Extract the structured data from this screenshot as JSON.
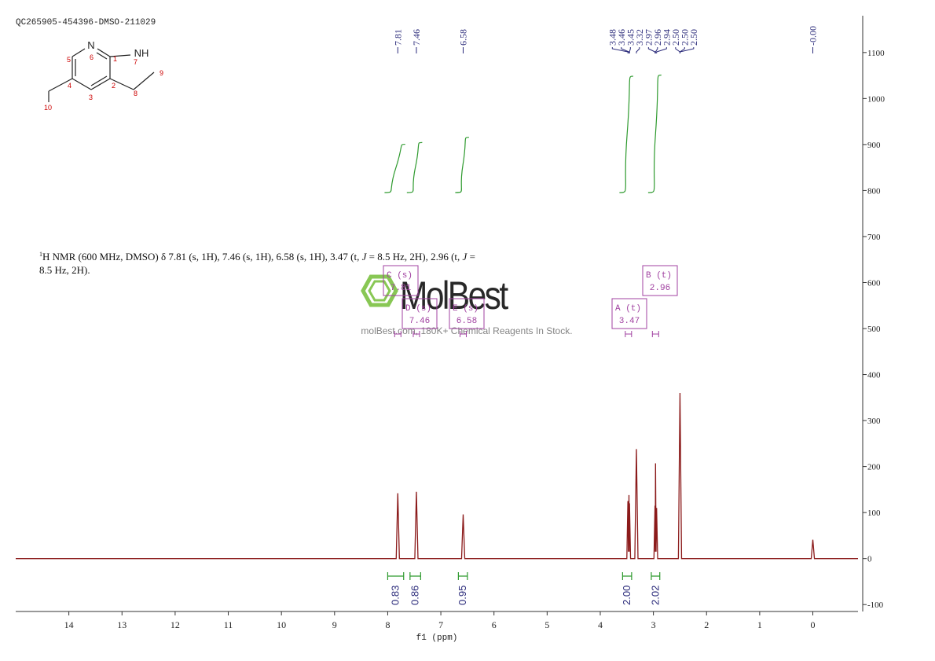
{
  "sample_id": "QC265905-454396-DMSO-211029",
  "structure": {
    "labels": [
      "N",
      "NH",
      "1",
      "2",
      "3",
      "4",
      "5",
      "6",
      "7",
      "8",
      "9",
      "10"
    ]
  },
  "description": [
    "1",
    "H NMR (600 MHz, DMSO) δ 7.81 (s, 1H), 7.46 (s, 1H), 6.58 (s, 1H), 3.47 (t, ",
    "J",
    " = 8.5 Hz, 2H), 2.96 (t, ",
    "J",
    " = 8.5 Hz, 2H)."
  ],
  "watermark": {
    "brand": "MolBest",
    "tagline": "molBest.com, 180K+ Chemical Reagents In Stock."
  },
  "chart_data": {
    "type": "line",
    "xlabel": "f1 (ppm)",
    "x": [
      15,
      7.84,
      7.81,
      7.78,
      7.49,
      7.46,
      7.43,
      6.61,
      6.58,
      6.55,
      3.5,
      3.48,
      3.47,
      3.46,
      3.455,
      3.45,
      3.43,
      3.35,
      3.32,
      3.29,
      2.99,
      2.97,
      2.965,
      2.96,
      2.95,
      2.94,
      2.92,
      2.53,
      2.5,
      2.47,
      0.03,
      0,
      -0.03,
      -0.85
    ],
    "values": [
      0,
      0,
      142,
      0,
      0,
      145,
      0,
      0,
      96,
      0,
      0,
      125,
      15,
      138,
      15,
      120,
      0,
      0,
      238,
      0,
      0,
      115,
      15,
      207,
      15,
      110,
      0,
      0,
      360,
      0,
      0,
      41,
      0,
      0
    ],
    "color": "#8b1a1a",
    "xlim": [
      15,
      -0.85
    ],
    "xticks": [
      14,
      13,
      12,
      11,
      10,
      9,
      8,
      7,
      6,
      5,
      4,
      3,
      2,
      1,
      0
    ],
    "ylim": [
      -115,
      1180
    ],
    "yticks": [
      -100,
      0,
      100,
      200,
      300,
      400,
      500,
      600,
      700,
      800,
      900,
      1000,
      1100
    ],
    "peak_labels": [
      7.81,
      7.46,
      6.58,
      3.48,
      3.46,
      3.45,
      3.32,
      2.97,
      2.96,
      2.94,
      {
        "value": 2.5,
        "label": "2.50"
      },
      {
        "value": 2.5,
        "label": "2.50"
      },
      {
        "value": 2.5,
        "label": "2.50"
      },
      {
        "value": 0,
        "label": "-0.00"
      }
    ],
    "multiplets": [
      {
        "name": "C (s)",
        "value": 7.81
      },
      {
        "name": "D (s)",
        "value": 7.46
      },
      {
        "name": "E (s)",
        "value": 6.58
      },
      {
        "name": "A (t)",
        "value": 3.47
      },
      {
        "name": "B (t)",
        "value": 2.96
      }
    ],
    "integrals": [
      {
        "value": 0.83,
        "from": 8.0,
        "to": 7.7
      },
      {
        "value": 0.86,
        "from": 7.58,
        "to": 7.38
      },
      {
        "value": 0.95,
        "from": 6.67,
        "to": 6.5
      },
      {
        "value": 2.0,
        "label": "2.00",
        "from": 3.58,
        "to": 3.41
      },
      {
        "value": 2.02,
        "from": 3.04,
        "to": 2.88
      }
    ],
    "integral_color": "#2e9a2e"
  }
}
